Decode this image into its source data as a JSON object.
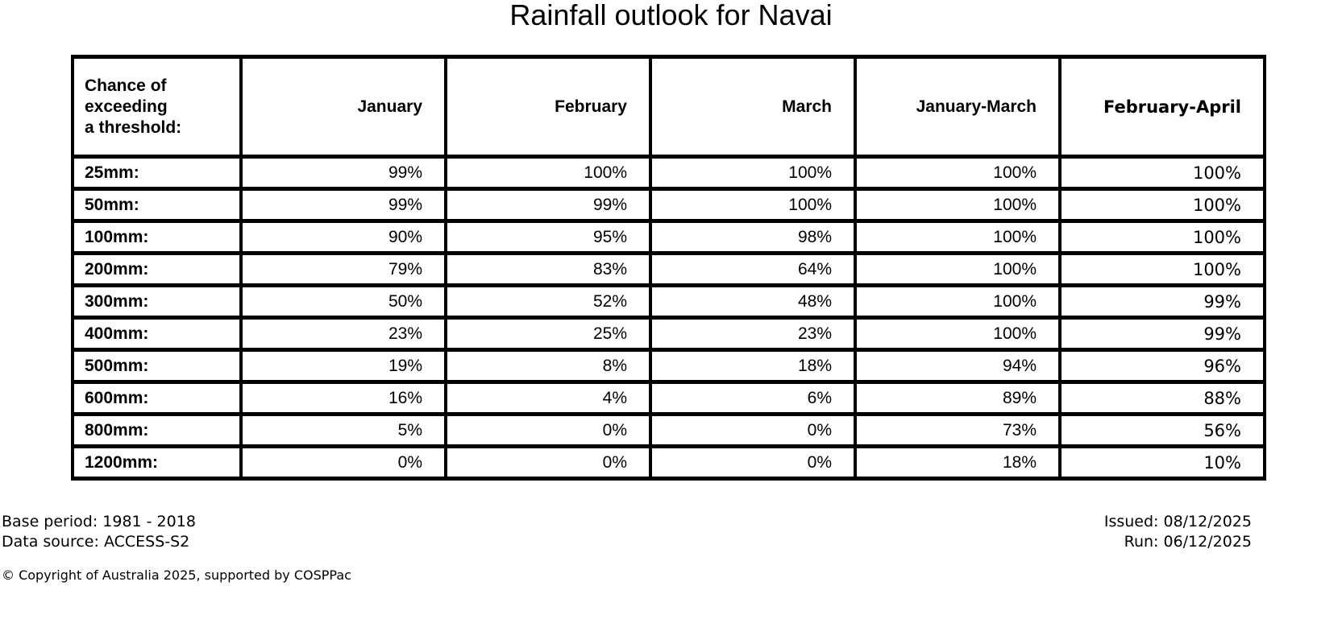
{
  "title": "Rainfall outlook for Navai",
  "chart_data": {
    "type": "table",
    "title": "Rainfall outlook for Navai",
    "corner_header": "Chance of\nexceeding\na threshold:",
    "columns": [
      "January",
      "February",
      "March",
      "January-March",
      "February-April"
    ],
    "rows": [
      "25mm:",
      "50mm:",
      "100mm:",
      "200mm:",
      "300mm:",
      "400mm:",
      "500mm:",
      "600mm:",
      "800mm:",
      "1200mm:"
    ],
    "values_percent": [
      [
        99,
        100,
        100,
        100,
        100
      ],
      [
        99,
        99,
        100,
        100,
        100
      ],
      [
        90,
        95,
        98,
        100,
        100
      ],
      [
        79,
        83,
        64,
        100,
        100
      ],
      [
        50,
        52,
        48,
        100,
        99
      ],
      [
        23,
        25,
        23,
        100,
        99
      ],
      [
        19,
        8,
        18,
        94,
        96
      ],
      [
        16,
        4,
        6,
        89,
        88
      ],
      [
        5,
        0,
        0,
        73,
        56
      ],
      [
        0,
        0,
        0,
        18,
        10
      ]
    ],
    "value_suffix": "%"
  },
  "footer": {
    "base_period": "Base period: 1981 - 2018",
    "data_source": "Data source: ACCESS-S2",
    "issued": "Issued: 08/12/2025",
    "run": "Run: 06/12/2025",
    "copyright": "© Copyright of Australia 2025, supported by COSPPac"
  },
  "colors": {
    "text": "#000000",
    "background": "#ffffff",
    "border": "#000000"
  }
}
